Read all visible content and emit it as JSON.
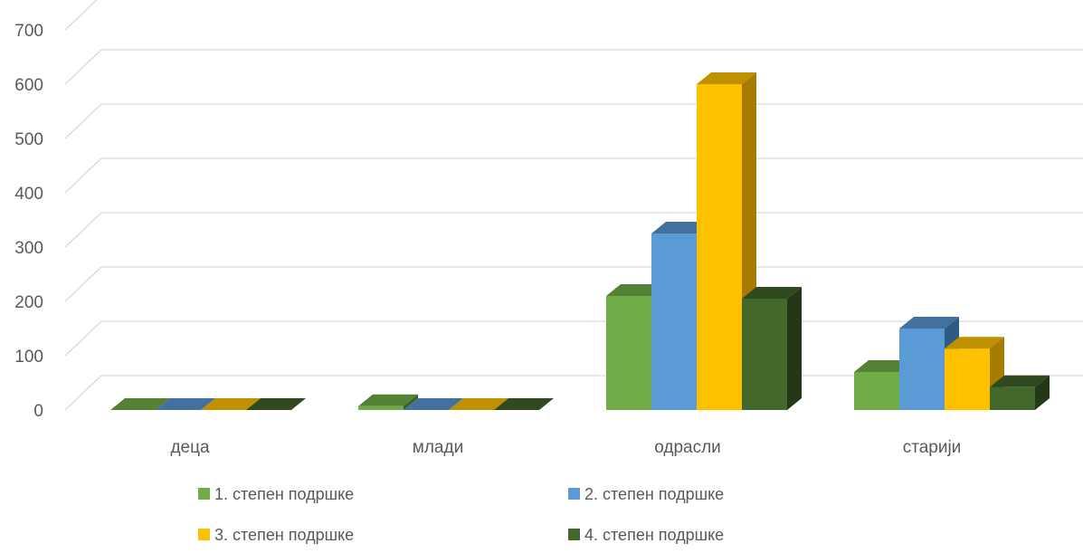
{
  "chart_data": {
    "type": "bar",
    "style": "3d-clustered-column",
    "categories": [
      "деца",
      "млади",
      "одрасли",
      "старији"
    ],
    "series": [
      {
        "name": "1. степен подршке",
        "values": [
          0,
          7,
          210,
          70
        ],
        "color": "#70ad47",
        "top_color": "#548235",
        "side_color": "#3b5e28"
      },
      {
        "name": "2. степен подршке",
        "values": [
          0,
          0,
          325,
          150
        ],
        "color": "#5b9bd5",
        "top_color": "#41719c",
        "side_color": "#2e5b83"
      },
      {
        "name": "3. степен подршке",
        "values": [
          0,
          0,
          600,
          113
        ],
        "color": "#ffc000",
        "top_color": "#bf9000",
        "side_color": "#a67c00"
      },
      {
        "name": "4. степен подршке",
        "values": [
          0,
          0,
          205,
          42
        ],
        "color": "#43682b",
        "top_color": "#30491f",
        "side_color": "#243818"
      }
    ],
    "yticks": [
      0,
      100,
      200,
      300,
      400,
      500,
      600,
      700
    ],
    "ylim": [
      0,
      700
    ],
    "title": "",
    "xlabel": "",
    "ylabel": "",
    "grid": true,
    "legend_position": "bottom"
  }
}
